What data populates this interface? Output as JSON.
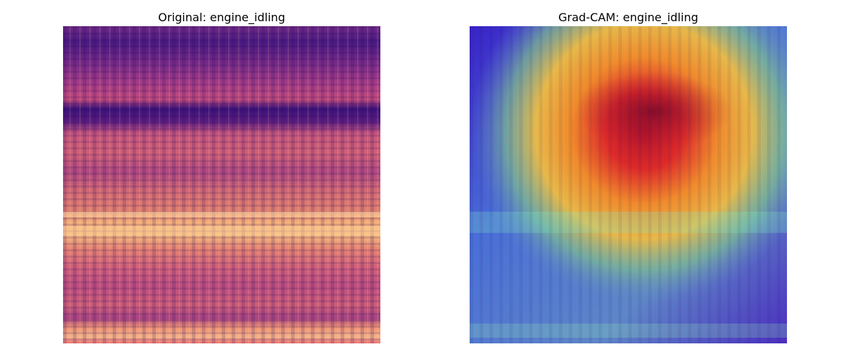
{
  "panels": [
    {
      "title": "Original: engine_idling",
      "kind": "spectrogram",
      "colormap": "magma"
    },
    {
      "title": "Grad-CAM: engine_idling",
      "kind": "gradcam-overlay",
      "colormap": "jet"
    }
  ]
}
